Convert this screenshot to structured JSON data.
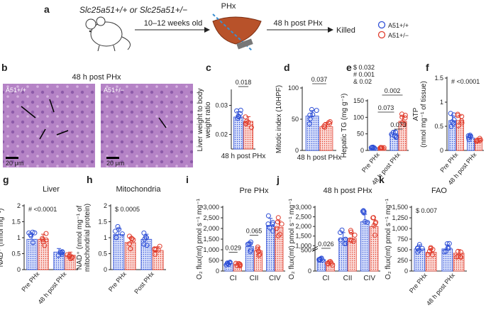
{
  "panel_a": {
    "letter": "a",
    "genotypes_label": "Slc25a51+/+ or Slc25a51+/−",
    "step1_label": "10–12 weeks old",
    "procedure_label": "PHx",
    "step2_label": "48 h post PHx",
    "end_label": "Killed",
    "legend": [
      {
        "label": "A51+/+",
        "color": "#2e4fd6"
      },
      {
        "label": "A51+/−",
        "color": "#e03c2c"
      }
    ]
  },
  "panel_b": {
    "letter": "b",
    "title": "48 h post PHx",
    "left_label": "A51+/+",
    "right_label": "A51+/−",
    "scale_bar": "20 μm"
  },
  "colors": {
    "wt": "#2e4fd6",
    "het": "#e03c2c",
    "tissue": "#b07ec2"
  },
  "chart_data": [
    {
      "id": "c",
      "letter": "c",
      "type": "bar",
      "title": "",
      "ylabel": "Liver weight to body weight ratio",
      "ylabel_lines": [
        "Liver weight to body",
        "weight ratio"
      ],
      "ylim": [
        0.015,
        0.035
      ],
      "ticks": [
        0.02,
        0.03
      ],
      "categories": [
        "48 h post PHx"
      ],
      "series": [
        {
          "name": "A51+/+",
          "values": [
            0.026
          ]
        },
        {
          "name": "A51+/−",
          "values": [
            0.0245
          ]
        }
      ],
      "annotations": [
        "0.018"
      ]
    },
    {
      "id": "d",
      "letter": "d",
      "type": "bar",
      "title": "",
      "ylabel": "Mitotic index (10HPF)",
      "ylabel_lines": [
        "Mitotic index (10HPF)"
      ],
      "ylim": [
        0,
        100
      ],
      "ticks": [
        0,
        50,
        100
      ],
      "categories": [
        "48 h post PHx"
      ],
      "series": [
        {
          "name": "A51+/+",
          "values": [
            55
          ]
        },
        {
          "name": "A51+/−",
          "values": [
            38
          ]
        }
      ],
      "annotations": [
        "0.037"
      ]
    },
    {
      "id": "e",
      "letter": "e",
      "type": "bar",
      "title": "",
      "ylabel": "Hepatic TG (mg g⁻¹)",
      "ylabel_lines": [
        "Hepatic TG (mg g⁻¹)"
      ],
      "ylim": [
        0,
        150
      ],
      "ticks": [
        0,
        50,
        100,
        150
      ],
      "categories": [
        "Pre PHx",
        "48 h post PHx"
      ],
      "series": [
        {
          "name": "A51+/+",
          "values": [
            8,
            50
          ]
        },
        {
          "name": "A51+/−",
          "values": [
            8,
            88
          ]
        }
      ],
      "stats": [
        "$ 0.032",
        "# 0.001",
        "& 0.02"
      ],
      "annotations": [
        "0.073",
        "0.002",
        "0.073"
      ]
    },
    {
      "id": "f",
      "letter": "f",
      "type": "bar",
      "title": "",
      "ylabel": "ATP (nmol mg⁻¹ of tissue)",
      "ylabel_lines": [
        "ATP",
        "(nmol mg⁻¹ of tissue)"
      ],
      "ylim": [
        0,
        1.5
      ],
      "ticks": [
        0,
        0.5,
        1.0,
        1.5
      ],
      "categories": [
        "Pre PHx",
        "48 h post PHx"
      ],
      "series": [
        {
          "name": "A51+/+",
          "values": [
            0.62,
            0.26
          ]
        },
        {
          "name": "A51+/−",
          "values": [
            0.62,
            0.2
          ]
        }
      ],
      "stats": [
        "# <0.0001"
      ]
    },
    {
      "id": "g",
      "letter": "g",
      "type": "bar",
      "title": "Liver",
      "ylabel": "NAD⁺ (nmol mg⁻¹)",
      "ylabel_lines": [
        "NAD⁺ (nmol mg⁻¹)"
      ],
      "ylim": [
        0,
        2
      ],
      "ticks": [
        0,
        0.5,
        1.0,
        1.5,
        2.0
      ],
      "categories": [
        "Pre PHx",
        "48 h post PHx"
      ],
      "series": [
        {
          "name": "A51+/+",
          "values": [
            0.95,
            0.55
          ]
        },
        {
          "name": "A51+/−",
          "values": [
            0.95,
            0.45
          ]
        }
      ],
      "stats": [
        "# <0.0001"
      ]
    },
    {
      "id": "h",
      "letter": "h",
      "type": "bar",
      "title": "Mitochondria",
      "ylabel": "NAD⁺ (nmol mg⁻¹ of mitochondrial protein)",
      "ylabel_lines": [
        "NAD⁺ (nmol mg⁻¹ of",
        "mitochondrial protein)"
      ],
      "ylim": [
        0,
        2
      ],
      "ticks": [
        0,
        0.5,
        1.0,
        1.5,
        2.0
      ],
      "categories": [
        "Pre PHx",
        "Post PHx"
      ],
      "series": [
        {
          "name": "A51+/+",
          "values": [
            1.1,
            0.95
          ]
        },
        {
          "name": "A51+/−",
          "values": [
            0.85,
            0.6
          ]
        }
      ],
      "stats": [
        "$ 0.0005"
      ]
    },
    {
      "id": "i",
      "letter": "i",
      "type": "bar",
      "title": "Pre PHx",
      "ylabel": "O₂ flux(mt) pmol s⁻¹ mg⁻¹",
      "ylabel_lines": [
        "O₂ flux(mt) pmol s⁻¹ mg⁻¹"
      ],
      "ylim": [
        0,
        3000
      ],
      "ticks": [
        0,
        500,
        1000,
        1500,
        2000,
        2500,
        3000
      ],
      "tick_labels": [
        "0",
        "500",
        "1,000",
        "1,500",
        "2,000",
        "2,500",
        "3,000"
      ],
      "categories": [
        "CI",
        "CII",
        "CIV"
      ],
      "series": [
        {
          "name": "A51+/+",
          "values": [
            350,
            1150,
            2150
          ]
        },
        {
          "name": "A51+/−",
          "values": [
            300,
            950,
            2050
          ]
        }
      ],
      "annotations": [
        "0.029",
        "0.065"
      ]
    },
    {
      "id": "j",
      "letter": "j",
      "type": "bar",
      "title": "48 h post PHx",
      "ylabel": "O₂ flux(mt) pmol s⁻¹ mg⁻¹",
      "ylabel_lines": [
        "O₂ flux(mt) pmol s⁻¹ mg⁻¹"
      ],
      "broken_axis": {
        "lower": [
          0,
          500
        ],
        "upper": [
          1000,
          3000
        ]
      },
      "ticks": [
        0,
        500,
        1000,
        1500,
        2000,
        2500,
        3000
      ],
      "tick_labels": [
        "0",
        "500",
        "1,000",
        "1,500",
        "2,000",
        "2,500",
        "3,000"
      ],
      "categories": [
        "CI",
        "CII",
        "CIV"
      ],
      "series": [
        {
          "name": "A51+/+",
          "values": [
            270,
            1400,
            2250
          ]
        },
        {
          "name": "A51+/−",
          "values": [
            180,
            1380,
            2000
          ]
        }
      ],
      "annotations": [
        "0.026"
      ]
    },
    {
      "id": "k",
      "letter": "k",
      "type": "bar",
      "title": "FAO",
      "ylabel": "O₂ flux(mt) pmol s⁻¹ mg⁻¹",
      "ylabel_lines": [
        "O₂ flux(mt) pmol s⁻¹ mg⁻¹"
      ],
      "ylim": [
        0,
        1500
      ],
      "ticks": [
        0,
        250,
        500,
        750,
        1000,
        1250,
        1500
      ],
      "tick_labels": [
        "0",
        "250",
        "500",
        "750",
        "1,000",
        "1,250",
        "1,500"
      ],
      "categories": [
        "Pre PHx",
        "48 h post PHx"
      ],
      "series": [
        {
          "name": "A51+/+",
          "values": [
            520,
            520
          ]
        },
        {
          "name": "A51+/−",
          "values": [
            440,
            420
          ]
        }
      ],
      "stats": [
        "$ 0.007"
      ]
    }
  ]
}
